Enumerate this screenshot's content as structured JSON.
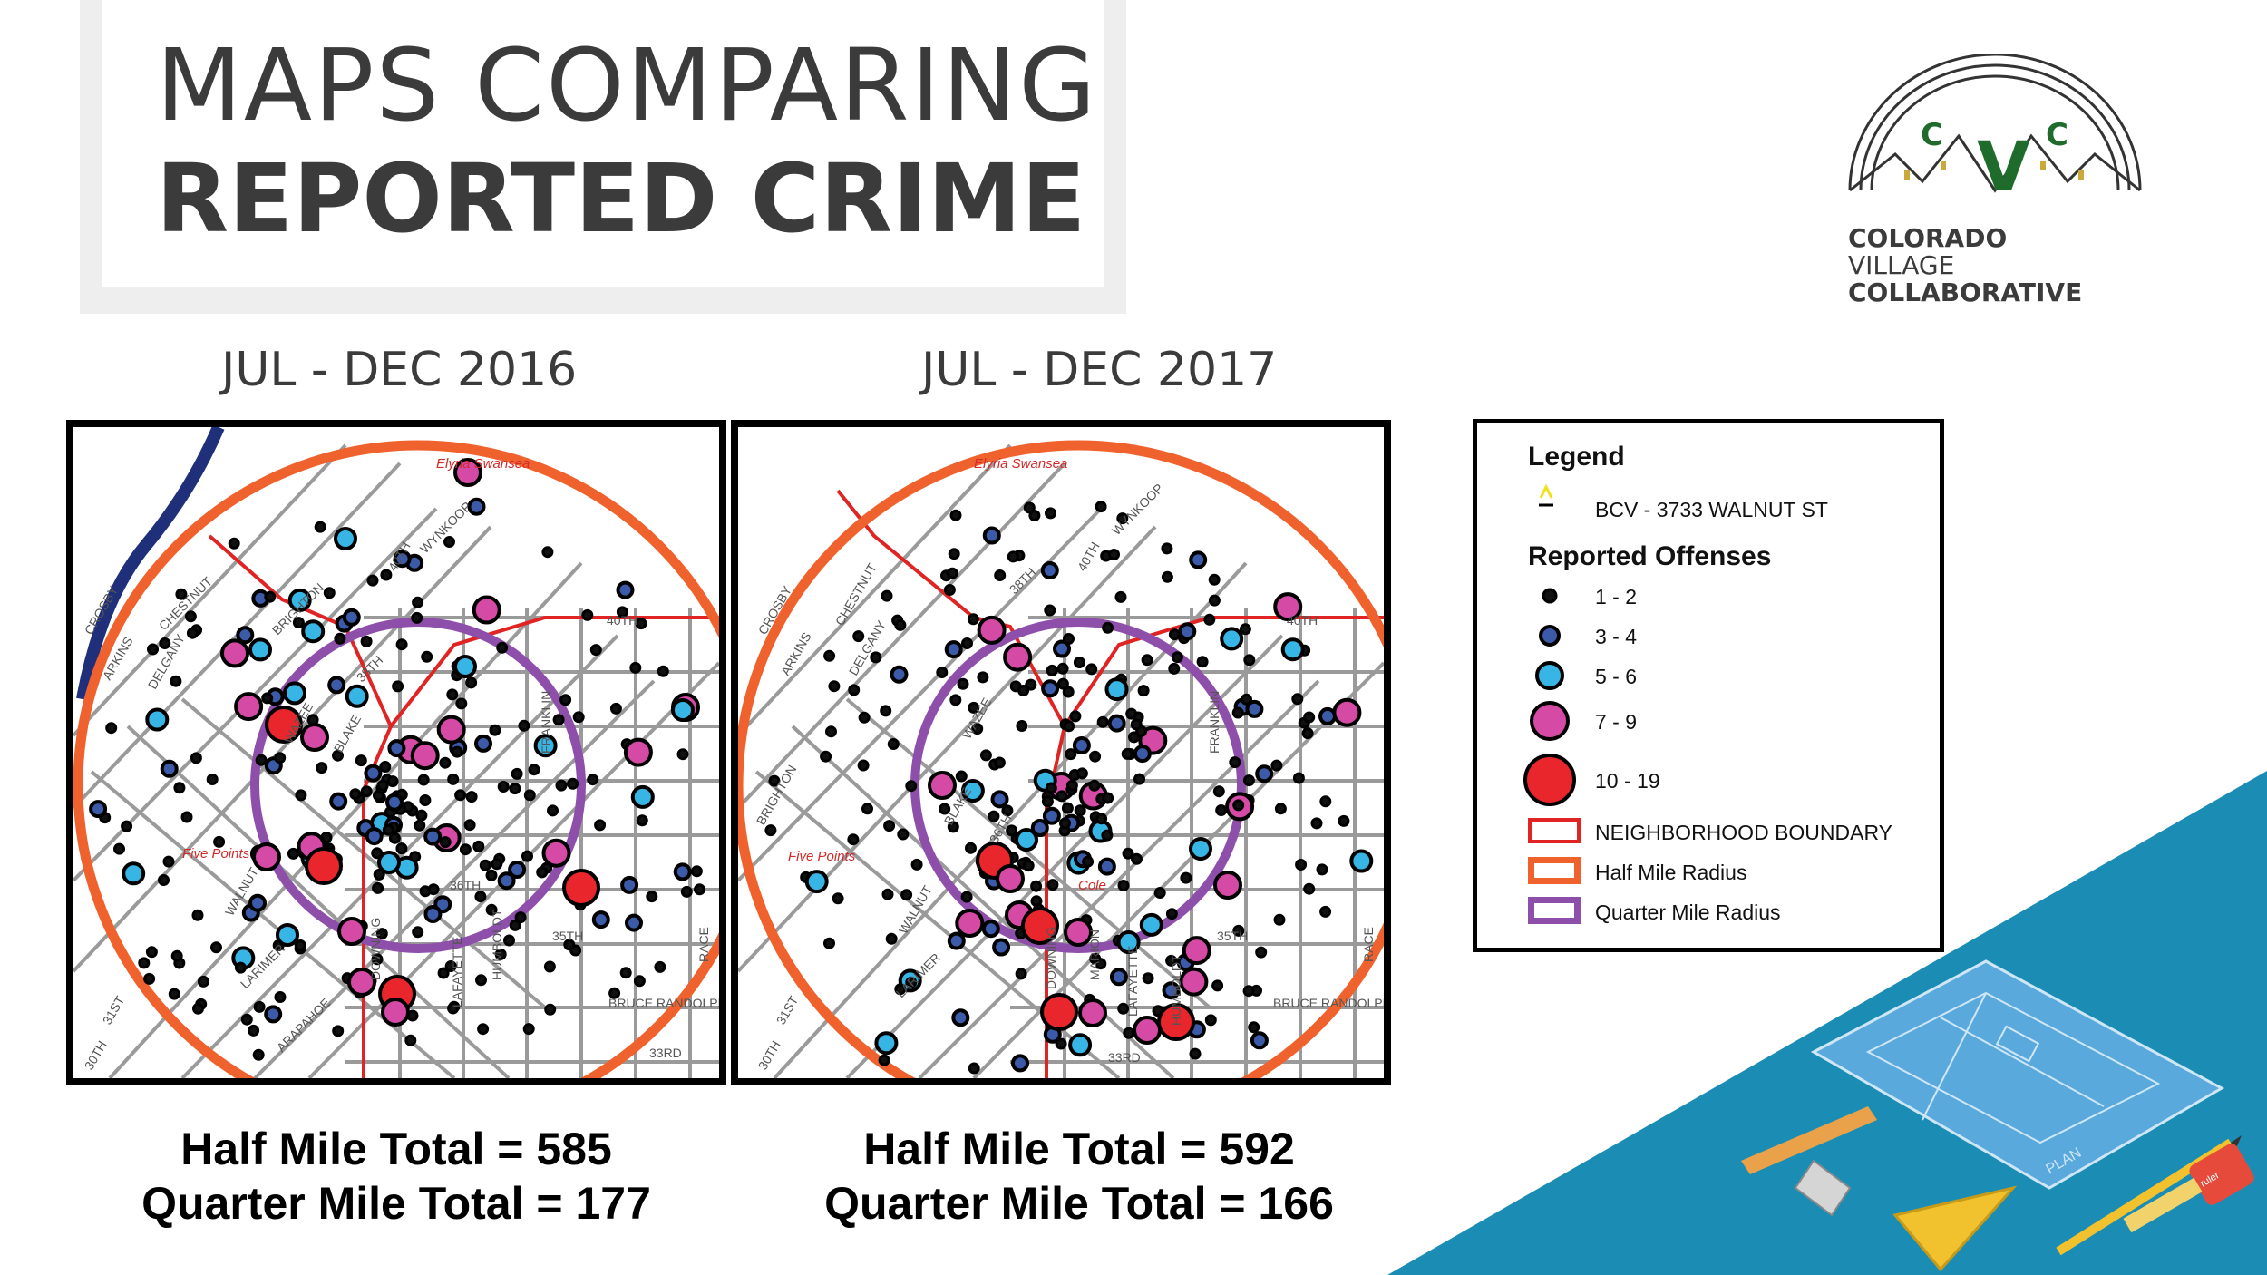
{
  "title": {
    "line1": "MAPS COMPARING",
    "line2": "REPORTED CRIME"
  },
  "logo": {
    "monogram_left": "C",
    "monogram_center": "V",
    "monogram_right": "C",
    "line1": "COLORADO",
    "line2": "VILLAGE",
    "line3": "COLLABORATIVE",
    "accent_color": "#1f6b2b"
  },
  "map_2016": {
    "period": "JUL - DEC 2016",
    "labels": {
      "neighborhood_north": "Elyria Swansea",
      "neighborhood_west": "Five Points",
      "s_wynkoop": "WYNKOOP",
      "s_40th_a": "40TH",
      "s_40th_b": "40TH",
      "s_brighton": "BRIGHTON",
      "s_chestnut": "CHESTNUT",
      "s_delgany": "DELGANY",
      "s_arkins": "ARKINS",
      "s_crosby": "CROSBY",
      "s_wazee": "WAZEE",
      "s_blake": "BLAKE",
      "s_38th": "38TH",
      "s_franklin": "FRANKLIN",
      "s_36th": "36TH",
      "s_35th": "35TH",
      "s_33rd": "33RD",
      "s_31st": "31ST",
      "s_30th": "30TH",
      "s_larimer": "LARIMER",
      "s_downing": "DOWNING",
      "s_humboldt": "HUMBOLDT",
      "s_race": "RACE",
      "s_bruce": "BRUCE RANDOLPH",
      "s_lafayette": "LAFAYETTE",
      "s_arapahoe": "ARAPAHOE",
      "s_walnut": "WALNUT"
    },
    "half_mile_total": "Half Mile Total = 585",
    "quarter_mile_total": "Quarter Mile Total = 177"
  },
  "map_2017": {
    "period": "JUL - DEC 2017",
    "labels": {
      "neighborhood_north": "Elyria Swansea",
      "neighborhood_west": "Five Points",
      "neighborhood_cole": "Cole",
      "s_wynkoop": "WYNKOOP",
      "s_40th_a": "40TH",
      "s_40th_b": "40TH",
      "s_brighton": "BRIGHTON",
      "s_chestnut": "CHESTNUT",
      "s_delgany": "DELGANY",
      "s_arkins": "ARKINS",
      "s_crosby": "CROSBY",
      "s_wazee": "WAZEE",
      "s_blake": "BLAKE",
      "s_38th": "38TH",
      "s_franklin": "FRANKLIN",
      "s_36th": "36TH",
      "s_35th": "35TH",
      "s_33rd": "33RD",
      "s_31st": "31ST",
      "s_30th": "30TH",
      "s_larimer": "LARIMER",
      "s_downing": "DOWNING",
      "s_humboldt": "HUMBOLDT",
      "s_race": "RACE",
      "s_bruce": "BRUCE RANDOLPH",
      "s_marion": "MARION",
      "s_lafayette": "LAFAYETTE",
      "s_walnut": "WALNUT"
    },
    "half_mile_total": "Half Mile Total = 592",
    "quarter_mile_total": "Quarter Mile Total = 166"
  },
  "legend": {
    "title": "Legend",
    "site_label": "BCV - 3733 WALNUT ST",
    "offenses_title": "Reported Offenses",
    "classes": [
      {
        "label": "1 - 2",
        "color": "#111111"
      },
      {
        "label": "3 - 4",
        "color": "#3b5aa8"
      },
      {
        "label": "5 - 6",
        "color": "#37b6e6"
      },
      {
        "label": "7 - 9",
        "color": "#d44aa5"
      },
      {
        "label": "10 - 19",
        "color": "#e8262b"
      }
    ],
    "boundary_label": "NEIGHBORHOOD BOUNDARY",
    "half_mile_label": "Half Mile Radius",
    "quarter_mile_label": "Quarter Mile Radius",
    "colors": {
      "boundary": "#e02424",
      "half_mile": "#f0622d",
      "quarter_mile": "#8e4fab",
      "river": "#1f2f7a",
      "streets": "#9a9a9a"
    }
  },
  "decoration": {
    "sheet_label": "PLAN",
    "tape_label": "ruler"
  }
}
